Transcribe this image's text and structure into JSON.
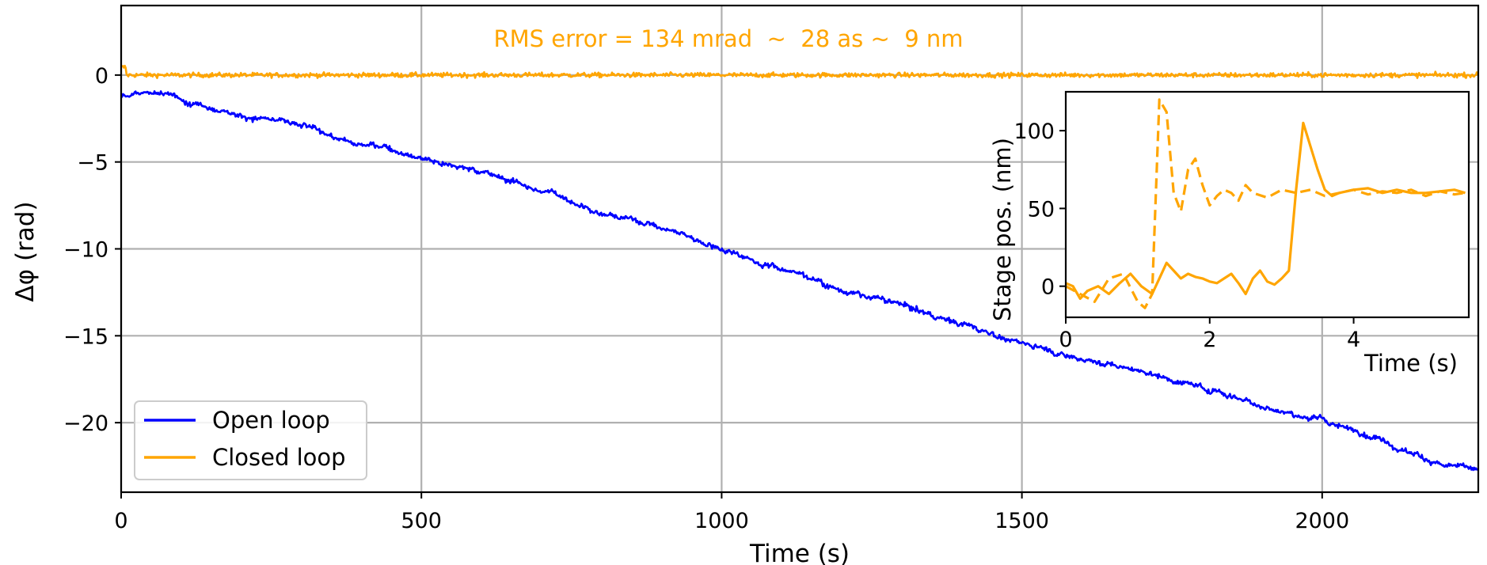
{
  "chart_data": [
    {
      "type": "line",
      "xlabel": "Time (s)",
      "ylabel": "Δφ (rad)",
      "xlim": [
        0,
        2260
      ],
      "ylim": [
        -24,
        4
      ],
      "xticks": [
        0,
        500,
        1000,
        1500,
        2000
      ],
      "yticks": [
        0,
        -5,
        -10,
        -15,
        -20
      ],
      "x_tick_labels": [
        "0",
        "500",
        "1000",
        "1500",
        "2000"
      ],
      "y_tick_labels": [
        "0",
        "−5",
        "−10",
        "−15",
        "−20"
      ],
      "grid": true,
      "legend": "lower-left",
      "annotation": {
        "text": "RMS error = 134 mrad  ~  28 as ~  9 nm",
        "x": 1130,
        "y": 2,
        "color": "#FFA500"
      },
      "series": [
        {
          "name": "Open loop",
          "color": "#0000FF",
          "x": [
            0,
            50,
            100,
            200,
            300,
            400,
            500,
            600,
            700,
            800,
            900,
            1000,
            1100,
            1200,
            1300,
            1400,
            1500,
            1600,
            1700,
            1800,
            1900,
            2000,
            2100,
            2200,
            2260
          ],
          "y": [
            -1.2,
            -1.0,
            -1.4,
            -2.1,
            -3.0,
            -4.0,
            -4.6,
            -5.5,
            -6.6,
            -7.8,
            -8.7,
            -9.9,
            -11.0,
            -12.3,
            -13.3,
            -14.3,
            -15.4,
            -16.2,
            -17.0,
            -17.9,
            -18.9,
            -19.9,
            -20.9,
            -22.3,
            -22.9
          ]
        },
        {
          "name": "Closed loop",
          "color": "#FFA500",
          "x": [
            0,
            2260
          ],
          "y": [
            0.0,
            0.0
          ]
        }
      ]
    },
    {
      "type": "line",
      "xlabel": "Time (s)",
      "ylabel": "Stage pos. (nm)",
      "xlim": [
        0,
        5.6
      ],
      "ylim": [
        -20,
        125
      ],
      "xticks": [
        0,
        2,
        4
      ],
      "yticks": [
        0,
        50,
        100
      ],
      "x_tick_labels": [
        "0",
        "2",
        "4"
      ],
      "y_tick_labels": [
        "0",
        "50",
        "100"
      ],
      "grid": false,
      "series": [
        {
          "style": "solid",
          "color": "#FFA500",
          "x": [
            0,
            0.1,
            0.2,
            0.3,
            0.45,
            0.6,
            0.75,
            0.9,
            1.05,
            1.2,
            1.3,
            1.4,
            1.5,
            1.6,
            1.7,
            1.8,
            1.9,
            2.0,
            2.1,
            2.2,
            2.3,
            2.4,
            2.5,
            2.6,
            2.7,
            2.8,
            2.9,
            3.0,
            3.1,
            3.2,
            3.3,
            3.4,
            3.5,
            3.6,
            3.7,
            3.8,
            4.0,
            4.2,
            4.4,
            4.6,
            4.8,
            5.0,
            5.2,
            5.4,
            5.55
          ],
          "y": [
            2,
            0,
            -8,
            -3,
            0,
            -5,
            2,
            8,
            0,
            -5,
            5,
            15,
            10,
            5,
            8,
            6,
            5,
            3,
            2,
            5,
            8,
            2,
            -5,
            5,
            10,
            3,
            1,
            5,
            10,
            62,
            105,
            90,
            75,
            62,
            58,
            60,
            62,
            63,
            60,
            62,
            60,
            60,
            61,
            62,
            60
          ]
        },
        {
          "style": "dashed",
          "color": "#FFA500",
          "x": [
            0,
            0.2,
            0.4,
            0.6,
            0.8,
            1.0,
            1.1,
            1.2,
            1.3,
            1.4,
            1.5,
            1.6,
            1.7,
            1.8,
            1.9,
            2.0,
            2.1,
            2.2,
            2.3,
            2.4,
            2.5,
            2.6,
            2.8,
            3.0,
            3.2,
            3.4,
            3.6,
            3.8,
            4.0,
            4.2,
            4.4,
            4.6,
            4.8,
            5.0,
            5.2,
            5.4,
            5.55
          ],
          "y": [
            0,
            -5,
            -10,
            5,
            8,
            -10,
            -14,
            -5,
            120,
            112,
            60,
            48,
            75,
            82,
            65,
            52,
            58,
            62,
            60,
            55,
            65,
            60,
            57,
            62,
            60,
            62,
            58,
            60,
            62,
            59,
            61,
            60,
            62,
            58,
            61,
            59,
            60
          ]
        }
      ]
    }
  ]
}
